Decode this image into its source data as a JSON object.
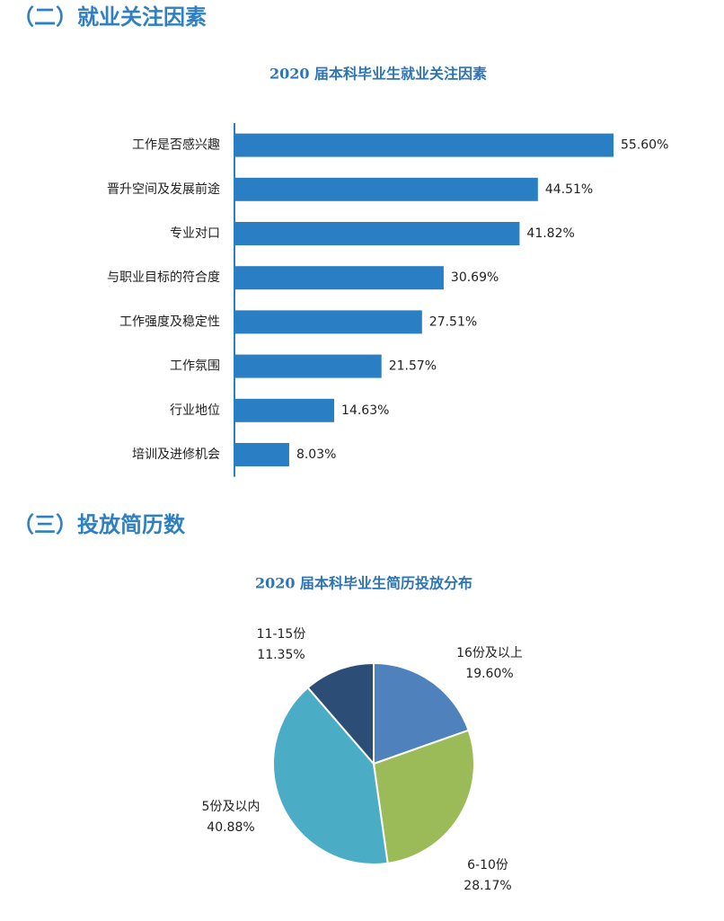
{
  "headings": [
    "（二）就业关注因素",
    "（三）投放简历数"
  ],
  "chart_data": [
    {
      "type": "hbar",
      "title": "2020 届本科毕业生就业关注因素",
      "color": "#2a7fc4",
      "categories": [
        "工作是否感兴趣",
        "晋升空间及发展前途",
        "专业对口",
        "与职业目标的符合度",
        "工作强度及稳定性",
        "工作氛围",
        "行业地位",
        "培训及进修机会"
      ],
      "values": [
        55.6,
        44.51,
        41.82,
        30.69,
        27.51,
        21.57,
        14.63,
        8.03
      ],
      "value_labels": [
        "55.60%",
        "44.51%",
        "41.82%",
        "30.69%",
        "27.51%",
        "21.57%",
        "14.63%",
        "8.03%"
      ]
    },
    {
      "type": "pie",
      "title": "2020 届本科毕业生简历投放分布",
      "categories": [
        "16份及以上",
        "6-10份",
        "5份及以内",
        "11-15份"
      ],
      "values": [
        19.6,
        28.17,
        40.88,
        11.35
      ],
      "value_labels": [
        "19.60%",
        "28.17%",
        "40.88%",
        "11.35%"
      ],
      "colors": [
        "#4f81bd",
        "#9bbb59",
        "#4bacc6",
        "#2c4d75"
      ]
    }
  ]
}
